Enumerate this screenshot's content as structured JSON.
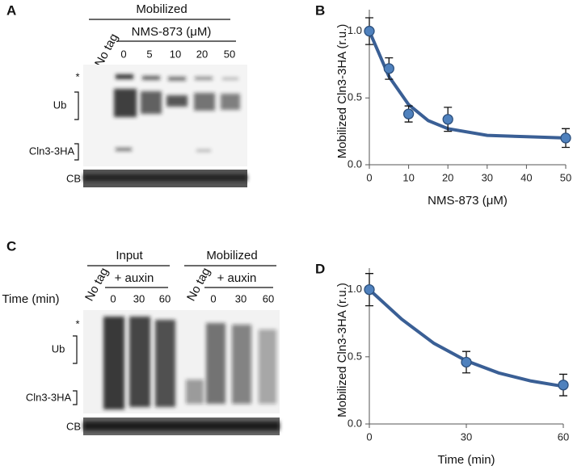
{
  "blot_A": {
    "label": "A",
    "header": "Mobilized",
    "control": "No tag",
    "treatment": "NMS-873 (μM)",
    "lanes": [
      "0",
      "5",
      "10",
      "20",
      "50"
    ],
    "markers": [
      "*",
      "Ub",
      "Cln3-3HA"
    ],
    "loading": "CB"
  },
  "blot_C": {
    "label": "C",
    "row_label": "Time (min)",
    "groups": [
      {
        "name": "Input",
        "control": "No tag",
        "treatment": "+ auxin",
        "lanes": [
          "0",
          "30",
          "60"
        ]
      },
      {
        "name": "Mobilized",
        "control": "No tag",
        "treatment": "+ auxin",
        "lanes": [
          "0",
          "30",
          "60"
        ]
      }
    ],
    "markers": [
      "*",
      "Ub",
      "Cln3-3HA"
    ],
    "loading": "CB"
  },
  "chart_data": [
    {
      "type": "scatter",
      "panel_label": "B",
      "x_label": "NMS-873 (μM)",
      "y_label": "Mobilized Cln3-3HA (r.u.)",
      "points": {
        "x": [
          0,
          5,
          10,
          20,
          50
        ],
        "values": [
          1.0,
          0.72,
          0.38,
          0.34,
          0.2
        ],
        "errors": [
          0.1,
          0.08,
          0.06,
          0.09,
          0.07
        ],
        "color": "#4f81bd"
      },
      "fit": {
        "x": [
          0,
          5,
          10,
          15,
          20,
          30,
          40,
          50
        ],
        "values": [
          1.0,
          0.66,
          0.45,
          0.33,
          0.27,
          0.22,
          0.21,
          0.2
        ],
        "color": "#3a5f95"
      },
      "xlim": [
        0,
        50
      ],
      "xticks": [
        0,
        10,
        20,
        30,
        40,
        50
      ],
      "ylim": [
        0,
        1.1
      ],
      "yticks": [
        {
          "value": 0,
          "label": "0.0"
        },
        {
          "value": 0.5,
          "label": "0.5"
        },
        {
          "value": 1,
          "label": "1.0"
        }
      ]
    },
    {
      "type": "scatter",
      "panel_label": "D",
      "x_label": "Time (min)",
      "y_label": "Mobilized Cln3-3HA (r.u.)",
      "points": {
        "x": [
          0,
          30,
          60
        ],
        "values": [
          1.0,
          0.46,
          0.29
        ],
        "errors": [
          0.12,
          0.08,
          0.08
        ],
        "color": "#4f81bd"
      },
      "fit": {
        "x": [
          0,
          10,
          20,
          30,
          40,
          50,
          60
        ],
        "values": [
          1.0,
          0.78,
          0.6,
          0.47,
          0.38,
          0.32,
          0.28
        ],
        "color": "#3a5f95"
      },
      "xlim": [
        0,
        60
      ],
      "xticks": [
        0,
        30,
        60
      ],
      "ylim": [
        0,
        1.1
      ],
      "yticks": [
        {
          "value": 0,
          "label": "0.0"
        },
        {
          "value": 0.5,
          "label": "0.5"
        },
        {
          "value": 1,
          "label": "1.0"
        }
      ]
    }
  ]
}
